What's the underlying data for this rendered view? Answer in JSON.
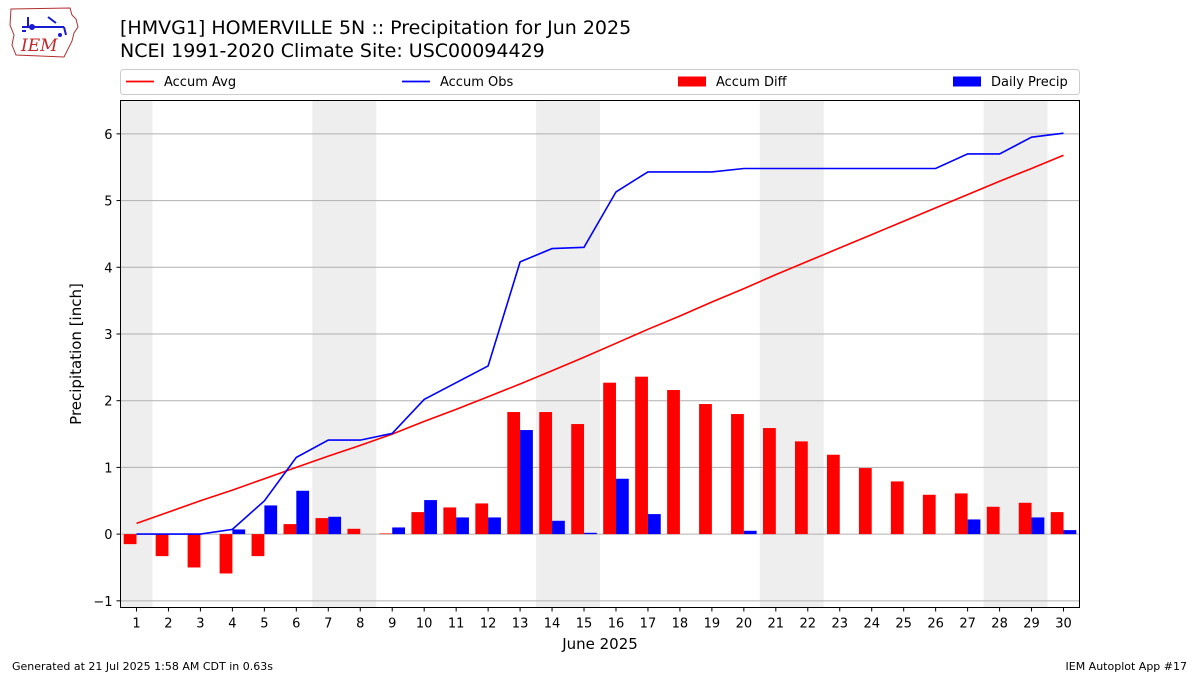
{
  "header": {
    "title_line1": "[HMVG1] HOMERVILLE 5N :: Precipitation for Jun 2025",
    "title_line2": "NCEI 1991-2020 Climate Site: USC00094429",
    "logo_text": "IEM"
  },
  "footer": {
    "generated": "Generated at 21 Jul 2025 1:58 AM CDT in 0.63s",
    "app": "IEM Autoplot App #17"
  },
  "chart_data": {
    "type": "bar",
    "xlabel": "June 2025",
    "ylabel": "Precipitation [inch]",
    "ylim": [
      -1.1,
      6.5
    ],
    "yticks": [
      -1,
      0,
      1,
      2,
      3,
      4,
      5,
      6
    ],
    "grid": "horizontal",
    "legend_position": "top",
    "weekend_shading": [
      [
        0.5,
        1.5
      ],
      [
        6.5,
        8.5
      ],
      [
        13.5,
        15.5
      ],
      [
        20.5,
        22.5
      ],
      [
        27.5,
        29.5
      ]
    ],
    "days": [
      1,
      2,
      3,
      4,
      5,
      6,
      7,
      8,
      9,
      10,
      11,
      12,
      13,
      14,
      15,
      16,
      17,
      18,
      19,
      20,
      21,
      22,
      23,
      24,
      25,
      26,
      27,
      28,
      29,
      30
    ],
    "colors": {
      "avg": "#ff0000",
      "obs": "#0000ff",
      "diff": "#ff0000",
      "daily": "#0000ff",
      "shade": "#eeeeee"
    },
    "series": [
      {
        "name": "Accum Avg",
        "kind": "line",
        "values": [
          0.16,
          0.33,
          0.5,
          0.66,
          0.83,
          1.0,
          1.17,
          1.33,
          1.5,
          1.69,
          1.87,
          2.06,
          2.25,
          2.45,
          2.65,
          2.86,
          3.07,
          3.27,
          3.48,
          3.68,
          3.89,
          4.09,
          4.29,
          4.49,
          4.69,
          4.89,
          5.09,
          5.29,
          5.48,
          5.68
        ]
      },
      {
        "name": "Accum Obs",
        "kind": "line",
        "values": [
          0,
          0,
          0,
          0.07,
          0.5,
          1.15,
          1.41,
          1.41,
          1.51,
          2.02,
          2.27,
          2.52,
          4.08,
          4.28,
          4.3,
          5.13,
          5.43,
          5.43,
          5.43,
          5.48,
          5.48,
          5.48,
          5.48,
          5.48,
          5.48,
          5.48,
          5.7,
          5.7,
          5.95,
          6.01
        ]
      },
      {
        "name": "Accum Diff",
        "kind": "bar",
        "values": [
          -0.15,
          -0.33,
          -0.5,
          -0.59,
          -0.33,
          0.15,
          0.24,
          0.08,
          0.01,
          0.33,
          0.4,
          0.46,
          1.83,
          1.83,
          1.65,
          2.27,
          2.36,
          2.16,
          1.95,
          1.8,
          1.59,
          1.39,
          1.19,
          0.99,
          0.79,
          0.59,
          0.61,
          0.41,
          0.47,
          0.33
        ]
      },
      {
        "name": "Daily Precip",
        "kind": "bar",
        "values": [
          0,
          0,
          0,
          0.07,
          0.43,
          0.65,
          0.26,
          0,
          0.1,
          0.51,
          0.25,
          0.25,
          1.56,
          0.2,
          0.02,
          0.83,
          0.3,
          0,
          0,
          0.05,
          0,
          0,
          0,
          0,
          0,
          0,
          0.22,
          0,
          0.25,
          0.06
        ]
      }
    ]
  }
}
